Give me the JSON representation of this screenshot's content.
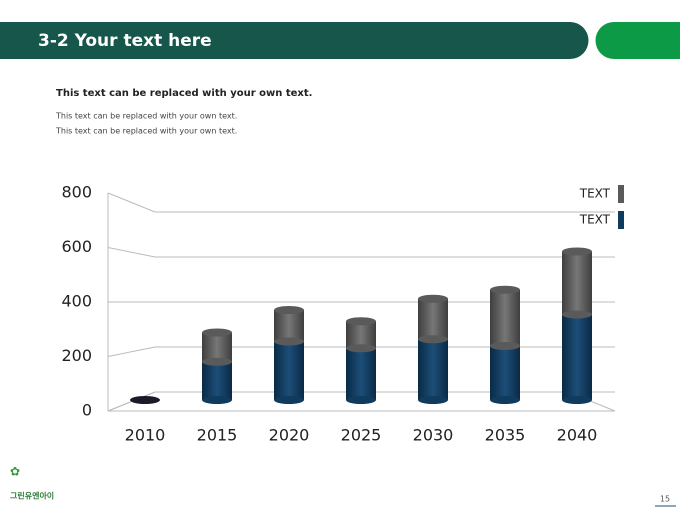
{
  "header": {
    "title": "3-2 Your text here"
  },
  "subtitle": "This text can be replaced with your own text.",
  "body": [
    "This text can be replaced with your own text.",
    "This text can be replaced with your own text."
  ],
  "chart_data": {
    "type": "bar3d-stacked",
    "categories": [
      "2010",
      "2015",
      "2020",
      "2025",
      "2030",
      "2035",
      "2040"
    ],
    "series": [
      {
        "name": "TEXT",
        "color": "#0f3b5e",
        "values": [
          0,
          170,
          260,
          230,
          270,
          240,
          380
        ]
      },
      {
        "name": "TEXT",
        "color": "#5a5a5a",
        "values": [
          0,
          130,
          140,
          120,
          180,
          250,
          280
        ]
      }
    ],
    "ylim": [
      0,
      800
    ],
    "yticks": [
      0,
      200,
      400,
      600,
      800
    ],
    "grid": true
  },
  "footer": {
    "logo": "그린유엔아이",
    "page": "15"
  }
}
